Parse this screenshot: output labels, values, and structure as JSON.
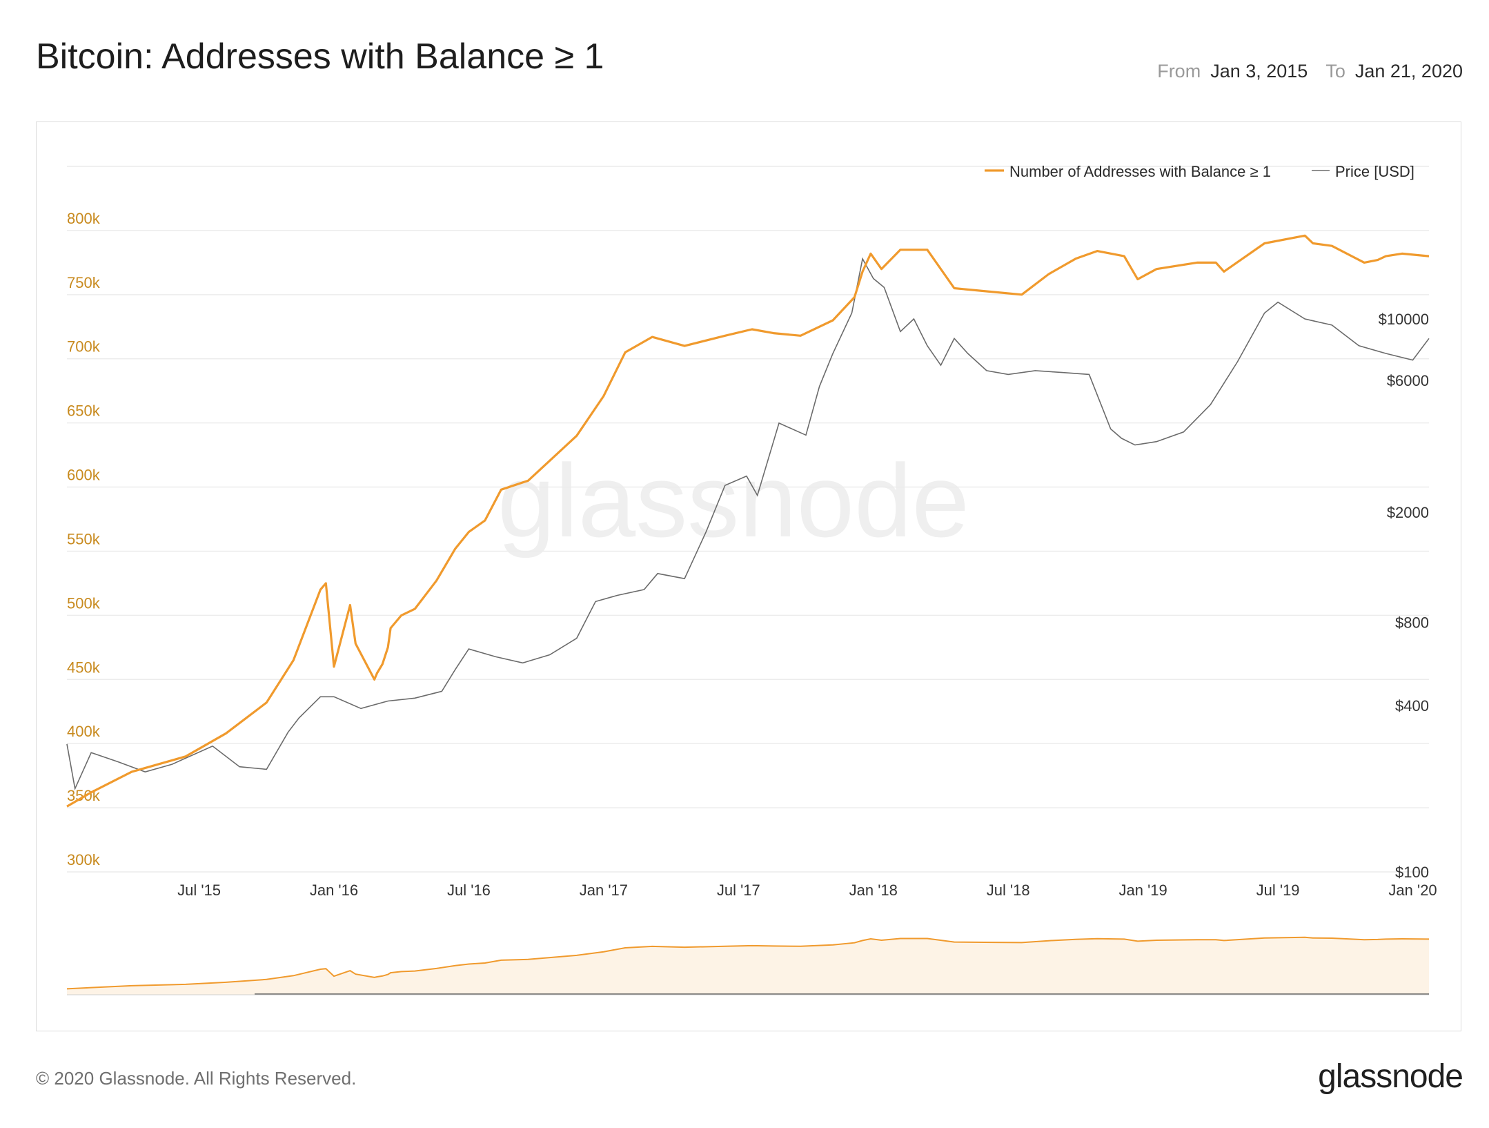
{
  "header": {
    "title": "Bitcoin: Addresses with Balance ≥ 1",
    "from_label": "From",
    "from_value": "Jan 3, 2015",
    "to_label": "To",
    "to_value": "Jan 21, 2020"
  },
  "footer": {
    "copyright": "© 2020 Glassnode. All Rights Reserved.",
    "brand": "glassnode"
  },
  "watermark": "glassnode",
  "colors": {
    "addresses": "#f09a2d",
    "price": "#6b6b6b",
    "left_axis": "#c88a1e",
    "grid": "#ececec"
  },
  "chart_data": {
    "type": "line",
    "legend_position": "top-right",
    "legend": [
      "Number of Addresses with Balance ≥ 1",
      "Price [USD]"
    ],
    "x_ticks": [
      "Jul '15",
      "Jan '16",
      "Jul '16",
      "Jan '17",
      "Jul '17",
      "Jan '18",
      "Jul '18",
      "Jan '19",
      "Jul '19",
      "Jan '20"
    ],
    "x_tick_years": [
      2015.5,
      2016.0,
      2016.5,
      2017.0,
      2017.5,
      2018.0,
      2018.5,
      2019.0,
      2019.5,
      2020.0
    ],
    "x_range": [
      2015.01,
      2020.06
    ],
    "y_left": {
      "ticks": [
        "300k",
        "350k",
        "400k",
        "450k",
        "500k",
        "550k",
        "600k",
        "650k",
        "700k",
        "750k",
        "800k"
      ],
      "tick_values": [
        300000,
        350000,
        400000,
        450000,
        500000,
        550000,
        600000,
        650000,
        700000,
        750000,
        800000
      ],
      "range": [
        300000,
        800000
      ]
    },
    "y_right": {
      "scale": "log",
      "ticks": [
        "$100",
        "$400",
        "$800",
        "$2000",
        "$6000",
        "$10000"
      ],
      "tick_values": [
        100,
        400,
        800,
        2000,
        6000,
        10000
      ]
    },
    "grid": true,
    "series": [
      {
        "name": "Number of Addresses with Balance ≥ 1",
        "axis": "left",
        "x": [
          2015.01,
          2015.1,
          2015.25,
          2015.45,
          2015.6,
          2015.75,
          2015.85,
          2015.95,
          2015.97,
          2016.0,
          2016.06,
          2016.08,
          2016.15,
          2016.16,
          2016.18,
          2016.2,
          2016.21,
          2016.25,
          2016.3,
          2016.38,
          2016.45,
          2016.5,
          2016.56,
          2016.62,
          2016.72,
          2016.9,
          2017.0,
          2017.08,
          2017.18,
          2017.3,
          2017.45,
          2017.55,
          2017.63,
          2017.73,
          2017.85,
          2017.93,
          2017.96,
          2017.99,
          2018.03,
          2018.1,
          2018.2,
          2018.3,
          2018.45,
          2018.55,
          2018.65,
          2018.75,
          2018.83,
          2018.93,
          2018.98,
          2019.05,
          2019.2,
          2019.27,
          2019.3,
          2019.45,
          2019.6,
          2019.63,
          2019.7,
          2019.82,
          2019.87,
          2019.9,
          2019.96,
          2020.06
        ],
        "y": [
          351000,
          362000,
          378000,
          390000,
          408000,
          432000,
          465000,
          520000,
          525000,
          460000,
          508000,
          478000,
          450000,
          455000,
          462000,
          475000,
          490000,
          500000,
          505000,
          527000,
          552000,
          565000,
          574000,
          598000,
          605000,
          640000,
          671000,
          705000,
          717000,
          710000,
          718000,
          723000,
          720000,
          718000,
          730000,
          748000,
          768000,
          782000,
          770000,
          785000,
          785000,
          755000,
          752000,
          750000,
          766000,
          778000,
          784000,
          780000,
          762000,
          770000,
          775000,
          775000,
          768000,
          790000,
          796000,
          790000,
          788000,
          775000,
          777000,
          780000,
          782000,
          780000
        ]
      },
      {
        "name": "Price [USD]",
        "axis": "right",
        "x": [
          2015.01,
          2015.04,
          2015.1,
          2015.2,
          2015.3,
          2015.4,
          2015.55,
          2015.65,
          2015.75,
          2015.83,
          2015.87,
          2015.95,
          2016.0,
          2016.1,
          2016.2,
          2016.3,
          2016.4,
          2016.45,
          2016.5,
          2016.6,
          2016.7,
          2016.8,
          2016.9,
          2016.97,
          2017.05,
          2017.15,
          2017.2,
          2017.3,
          2017.38,
          2017.45,
          2017.53,
          2017.57,
          2017.65,
          2017.75,
          2017.8,
          2017.85,
          2017.92,
          2017.96,
          2018.0,
          2018.04,
          2018.1,
          2018.15,
          2018.2,
          2018.25,
          2018.3,
          2018.35,
          2018.42,
          2018.5,
          2018.6,
          2018.7,
          2018.8,
          2018.88,
          2018.92,
          2018.97,
          2019.05,
          2019.15,
          2019.25,
          2019.35,
          2019.45,
          2019.5,
          2019.6,
          2019.7,
          2019.8,
          2019.9,
          2020.0,
          2020.06
        ],
        "y": [
          290,
          200,
          270,
          250,
          230,
          245,
          285,
          240,
          235,
          320,
          360,
          430,
          430,
          390,
          415,
          425,
          450,
          540,
          640,
          600,
          570,
          610,
          700,
          950,
          1000,
          1050,
          1200,
          1150,
          1700,
          2500,
          2700,
          2300,
          4200,
          3800,
          5700,
          7500,
          10500,
          16500,
          14000,
          13000,
          9000,
          10000,
          8000,
          6800,
          8500,
          7500,
          6500,
          6300,
          6500,
          6400,
          6300,
          4000,
          3700,
          3500,
          3600,
          3900,
          4900,
          7000,
          10500,
          11500,
          10000,
          9500,
          8000,
          7500,
          7100,
          8500
        ]
      }
    ]
  }
}
